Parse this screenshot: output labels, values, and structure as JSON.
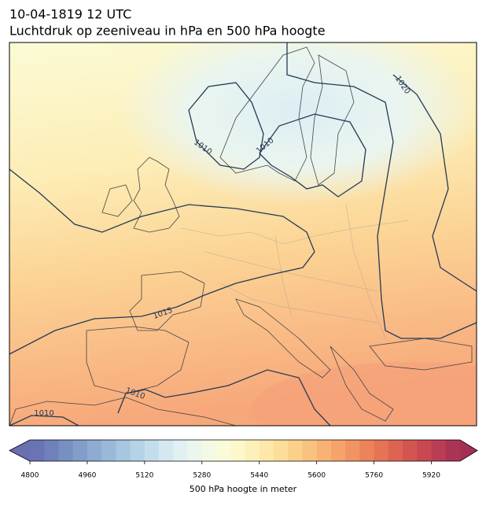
{
  "title": "10-04-1819 12 UTC",
  "subtitle": "Luchtdruk op zeeniveau in hPa en 500 hPa hoogte",
  "contour_labels": [
    1010,
    1010,
    1020,
    1015,
    1010,
    1010
  ],
  "colorbar": {
    "label": "500 hPa hoogte in meter",
    "range": [
      4800,
      6000
    ],
    "ticks": [
      4800,
      4960,
      5120,
      5280,
      5440,
      5600,
      5760,
      5920
    ],
    "colors": [
      "#6a74b4",
      "#6f80ba",
      "#788fc2",
      "#829dc9",
      "#8eabd1",
      "#9ab9d8",
      "#a7c6df",
      "#b5d2e6",
      "#c4ddec",
      "#d3e8f1",
      "#e1f1f3",
      "#ebf6ef",
      "#f3f9e4",
      "#f9fbd9",
      "#fcf8cb",
      "#fdf1ba",
      "#fde8aa",
      "#fcdd9a",
      "#fbd08b",
      "#fac27f",
      "#f8b374",
      "#f5a36a",
      "#f19362",
      "#ec835b",
      "#e57356",
      "#dd6353",
      "#d35552",
      "#c84852",
      "#bb3d53",
      "#ab3454"
    ],
    "under_color": "#6a6fb0",
    "over_color": "#a33054"
  }
}
